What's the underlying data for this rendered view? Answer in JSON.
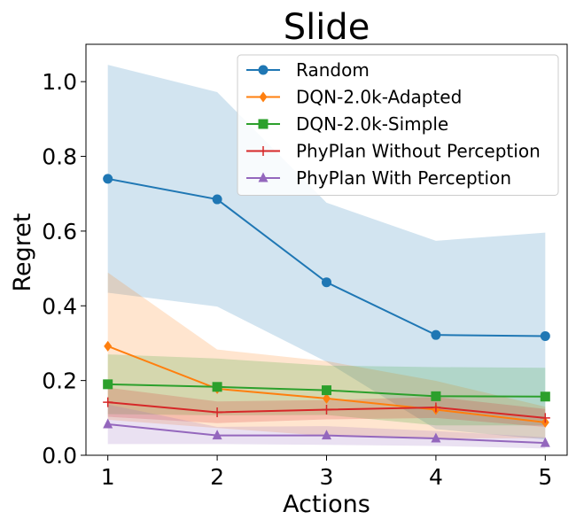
{
  "chart_data": {
    "type": "line",
    "title": "Slide",
    "xlabel": "Actions",
    "ylabel": "Regret",
    "x": [
      1,
      2,
      3,
      4,
      5
    ],
    "xlim": [
      0.8,
      5.2
    ],
    "ylim": [
      0.0,
      1.1
    ],
    "xticks": [
      "1",
      "2",
      "3",
      "4",
      "5"
    ],
    "yticks": [
      "0.0",
      "0.2",
      "0.4",
      "0.6",
      "0.8",
      "1.0"
    ],
    "grid": false,
    "legend_position": "top-right",
    "series": [
      {
        "name": "Random",
        "color": "#1f77b4",
        "marker": "circle",
        "values": [
          0.74,
          0.685,
          0.463,
          0.322,
          0.319
        ],
        "lower": [
          0.435,
          0.398,
          0.25,
          0.07,
          0.042
        ],
        "upper": [
          1.045,
          0.972,
          0.676,
          0.574,
          0.596
        ]
      },
      {
        "name": "DQN-2.0k-Adapted",
        "color": "#ff7f0e",
        "marker": "diamond",
        "values": [
          0.292,
          0.178,
          0.152,
          0.122,
          0.088
        ],
        "lower": [
          0.095,
          0.073,
          0.052,
          0.045,
          0.046
        ],
        "upper": [
          0.489,
          0.283,
          0.252,
          0.199,
          0.13
        ]
      },
      {
        "name": "DQN-2.0k-Simple",
        "color": "#2ca02c",
        "marker": "square",
        "values": [
          0.19,
          0.183,
          0.174,
          0.158,
          0.157
        ],
        "lower": [
          0.11,
          0.107,
          0.108,
          0.08,
          0.08
        ],
        "upper": [
          0.27,
          0.259,
          0.24,
          0.236,
          0.234
        ]
      },
      {
        "name": "PhyPlan Without Perception",
        "color": "#d62728",
        "marker": "plus",
        "values": [
          0.142,
          0.115,
          0.122,
          0.128,
          0.1
        ],
        "lower": [
          0.103,
          0.086,
          0.096,
          0.1,
          0.076
        ],
        "upper": [
          0.181,
          0.144,
          0.148,
          0.156,
          0.124
        ]
      },
      {
        "name": "PhyPlan With Perception",
        "color": "#9467bd",
        "marker": "triangle",
        "values": [
          0.083,
          0.053,
          0.053,
          0.045,
          0.033
        ],
        "lower": [
          0.03,
          0.03,
          0.028,
          0.025,
          0.018
        ],
        "upper": [
          0.136,
          0.076,
          0.078,
          0.065,
          0.048
        ]
      }
    ]
  }
}
